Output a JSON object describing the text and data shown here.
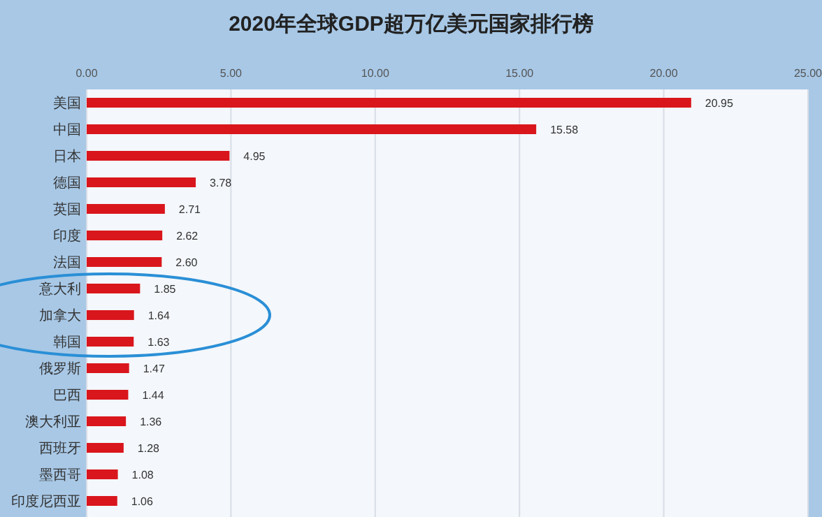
{
  "chart_data": {
    "type": "bar",
    "orientation": "horizontal",
    "title": "2020年全球GDP超万亿美元国家排行榜",
    "categories": [
      "美国",
      "中国",
      "日本",
      "德国",
      "英国",
      "印度",
      "法国",
      "意大利",
      "加拿大",
      "韩国",
      "俄罗斯",
      "巴西",
      "澳大利亚",
      "西班牙",
      "墨西哥",
      "印度尼西亚"
    ],
    "values": [
      20.95,
      15.58,
      4.95,
      3.78,
      2.71,
      2.62,
      2.6,
      1.85,
      1.64,
      1.63,
      1.47,
      1.44,
      1.36,
      1.28,
      1.08,
      1.06
    ],
    "value_labels": [
      "20.95",
      "15.58",
      "4.95",
      "3.78",
      "2.71",
      "2.62",
      "2.60",
      "1.85",
      "1.64",
      "1.63",
      "1.47",
      "1.44",
      "1.36",
      "1.28",
      "1.08",
      "1.06"
    ],
    "color": "#d9161c",
    "xlim": [
      0,
      25
    ],
    "xticks": [
      {
        "value": 0,
        "label": "0.00"
      },
      {
        "value": 5,
        "label": "5.00"
      },
      {
        "value": 10,
        "label": "10.00"
      },
      {
        "value": 15,
        "label": "15.00"
      },
      {
        "value": 20,
        "label": "20.00"
      },
      {
        "value": 25,
        "label": "25.00"
      }
    ],
    "grid": "x",
    "legend": false
  }
}
